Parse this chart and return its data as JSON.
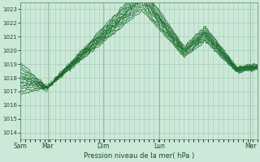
{
  "title": "Pression niveau de la mer( hPa )",
  "bg_color": "#cce8d8",
  "grid_color": "#a8ccb8",
  "line_color": "#1a6b2a",
  "ylim": [
    1013.5,
    1023.5
  ],
  "yticks": [
    1014,
    1015,
    1016,
    1017,
    1018,
    1019,
    1020,
    1021,
    1022,
    1023
  ],
  "xtick_labels": [
    "Sam",
    "Mar",
    "Dim",
    "Lun",
    "Mer"
  ],
  "xtick_positions": [
    0.0,
    0.115,
    0.35,
    0.585,
    0.97
  ],
  "num_points": 200,
  "num_lines": 11,
  "convergence_t": 0.115,
  "convergence_p": 1017.3
}
